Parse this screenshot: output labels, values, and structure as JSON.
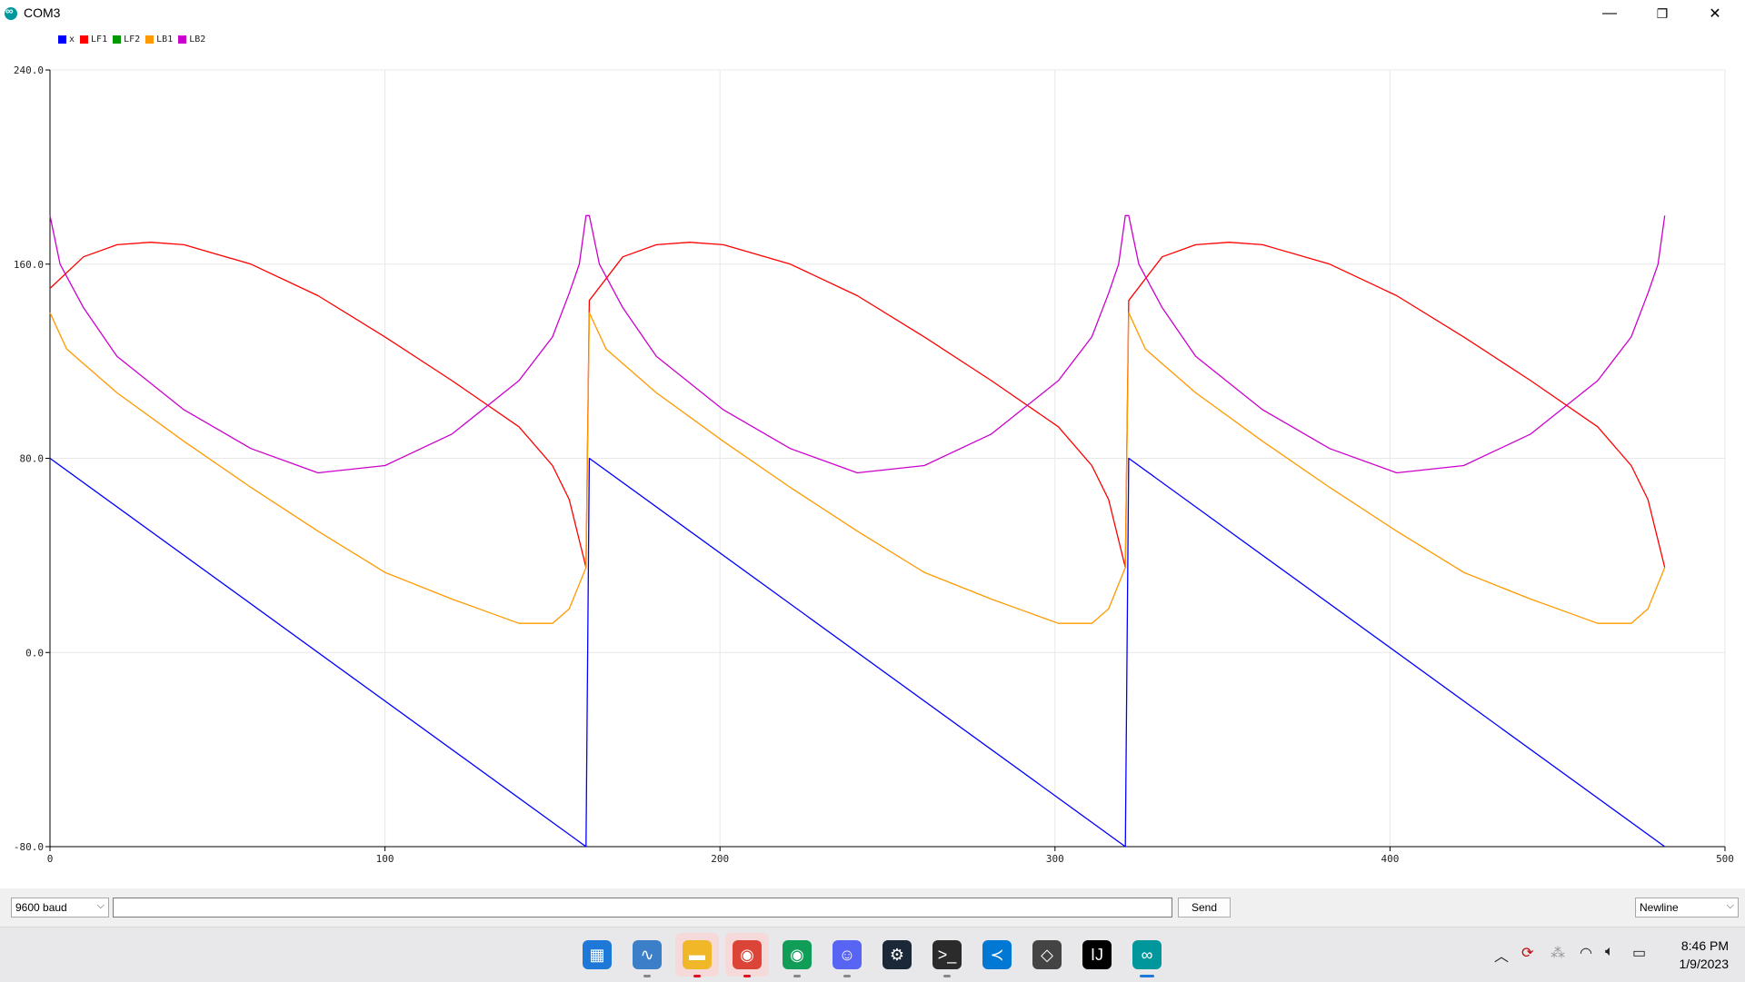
{
  "window": {
    "title": "COM3",
    "controls": {
      "minimize": "—",
      "restore": "❐",
      "close": "✕"
    }
  },
  "legend": [
    {
      "name": "x",
      "color": "#0000ff"
    },
    {
      "name": "LF1",
      "color": "#ff0000"
    },
    {
      "name": "LF2",
      "color": "#009900"
    },
    {
      "name": "LB1",
      "color": "#ff9900"
    },
    {
      "name": "LB2",
      "color": "#cc00cc"
    }
  ],
  "chart_data": {
    "type": "line",
    "xlim": [
      0,
      500
    ],
    "ylim": [
      -80,
      240
    ],
    "x_ticks": [
      "0",
      "100",
      "200",
      "300",
      "400",
      "500"
    ],
    "y_ticks": [
      "-80.0",
      "0.0",
      "80.0",
      "160.0",
      "240.0"
    ],
    "grid": true,
    "legend_position": "top-left",
    "series": [
      {
        "name": "x",
        "color": "#0000ff",
        "x": [
          0,
          160,
          161,
          321,
          322,
          482
        ],
        "y": [
          80,
          -80,
          80,
          -80,
          80,
          -80
        ]
      },
      {
        "name": "LF1",
        "color": "#ff0000",
        "x": [
          0,
          10,
          20,
          30,
          40,
          60,
          80,
          100,
          120,
          140,
          150,
          155,
          160,
          161,
          171,
          181,
          191,
          201,
          221,
          241,
          261,
          281,
          301,
          311,
          316,
          321,
          322,
          332,
          342,
          352,
          362,
          382,
          402,
          422,
          442,
          462,
          472,
          477,
          482
        ],
        "y": [
          150,
          163,
          168,
          169,
          168,
          160,
          147,
          130,
          112,
          93,
          77,
          63,
          35,
          145,
          163,
          168,
          169,
          168,
          160,
          147,
          130,
          112,
          93,
          77,
          63,
          35,
          145,
          163,
          168,
          169,
          168,
          160,
          147,
          130,
          112,
          93,
          77,
          63,
          35
        ]
      },
      {
        "name": "LF2",
        "color": "#009900",
        "x": [],
        "y": []
      },
      {
        "name": "LB1",
        "color": "#ff9900",
        "x": [
          0,
          5,
          20,
          40,
          60,
          80,
          100,
          120,
          130,
          140,
          150,
          155,
          160,
          161,
          166,
          181,
          201,
          221,
          241,
          261,
          281,
          291,
          301,
          311,
          316,
          321,
          322,
          327,
          342,
          362,
          382,
          402,
          422,
          442,
          452,
          462,
          472,
          477,
          482
        ],
        "y": [
          140,
          125,
          107,
          87,
          68,
          50,
          33,
          22,
          17,
          12,
          12,
          18,
          35,
          140,
          125,
          107,
          87,
          68,
          50,
          33,
          22,
          17,
          12,
          12,
          18,
          35,
          140,
          125,
          107,
          87,
          68,
          50,
          33,
          22,
          17,
          12,
          12,
          18,
          35
        ]
      },
      {
        "name": "LB2",
        "color": "#cc00cc",
        "x": [
          0,
          3,
          10,
          20,
          40,
          60,
          80,
          100,
          120,
          140,
          150,
          155,
          158,
          160,
          161,
          164,
          171,
          181,
          201,
          221,
          241,
          261,
          281,
          301,
          311,
          316,
          319,
          321,
          322,
          325,
          332,
          342,
          362,
          382,
          402,
          422,
          442,
          462,
          472,
          477,
          480,
          482
        ],
        "y": [
          180,
          160,
          142,
          122,
          100,
          84,
          74,
          77,
          90,
          112,
          130,
          148,
          160,
          180,
          180,
          160,
          142,
          122,
          100,
          84,
          74,
          77,
          90,
          112,
          130,
          148,
          160,
          180,
          180,
          160,
          142,
          122,
          100,
          84,
          74,
          77,
          90,
          112,
          130,
          148,
          160,
          180
        ]
      }
    ]
  },
  "bottom": {
    "baud": "9600 baud",
    "send_label": "Send",
    "line_ending": "Newline",
    "input_value": ""
  },
  "taskbar": {
    "apps": [
      {
        "name": "start-icon",
        "glyph": "▦",
        "color": "#1e78d7"
      },
      {
        "name": "task-manager-icon",
        "glyph": "∿",
        "color": "#3a7fc8"
      },
      {
        "name": "file-explorer-icon",
        "glyph": "▬",
        "color": "#f0b828"
      },
      {
        "name": "chrome-profile-icon",
        "glyph": "◉",
        "color": "#db4437"
      },
      {
        "name": "chrome-icon",
        "glyph": "◉",
        "color": "#0f9d58"
      },
      {
        "name": "discord-icon",
        "glyph": "☺",
        "color": "#5865f2"
      },
      {
        "name": "steam-icon",
        "glyph": "⚙",
        "color": "#1b2838"
      },
      {
        "name": "terminal-icon",
        "glyph": ">_",
        "color": "#2b2b2b"
      },
      {
        "name": "vscode-icon",
        "glyph": "≺",
        "color": "#0078d4"
      },
      {
        "name": "unity-icon",
        "glyph": "◇",
        "color": "#444444"
      },
      {
        "name": "intellij-icon",
        "glyph": "IJ",
        "color": "#000000"
      },
      {
        "name": "arduino-icon",
        "glyph": "∞",
        "color": "#00979c"
      }
    ],
    "time": "8:46 PM",
    "date": "1/9/2023"
  }
}
